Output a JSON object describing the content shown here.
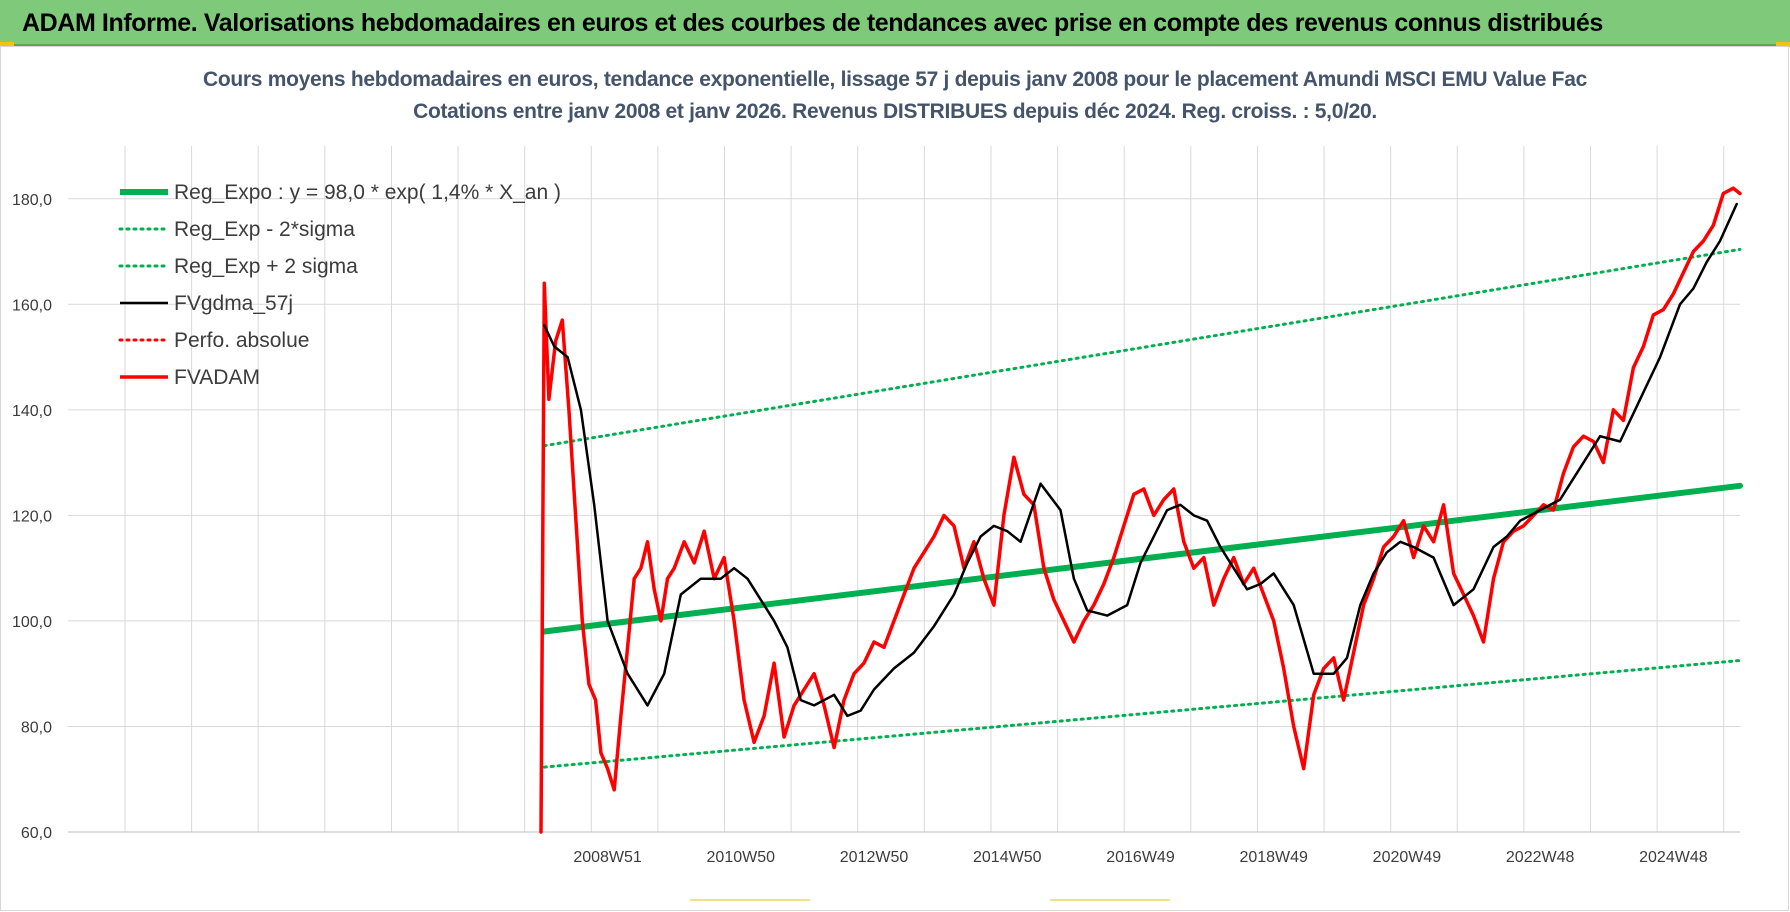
{
  "banner": {
    "title": "ADAM Informe. Valorisations hebdomadaires en euros et des courbes de tendances avec prise en compte des revenus connus distribués"
  },
  "colors": {
    "banner_bg": "#7fc97b",
    "regression": "#00b050",
    "price": "#ff0000",
    "moving_average": "#000000",
    "title_text": "#44546a"
  },
  "chart_data": {
    "type": "line",
    "title": "Cours moyens hebdomadaires en euros, tendance exponentielle, lissage 57 j depuis janv 2008 pour le placement Amundi MSCI EMU Value Fac",
    "subtitle": "Cotations entre janv 2008 et janv 2026. Revenus DISTRIBUES depuis déc 2024. Reg. croiss. : 5,0/20.",
    "xlabel": "",
    "ylabel": "",
    "ylim": [
      60,
      190
    ],
    "y_ticks": [
      "60,0",
      "80,0",
      "100,0",
      "120,0",
      "140,0",
      "160,0",
      "180,0"
    ],
    "x_tick_labels": [
      "2008W51",
      "2010W50",
      "2012W50",
      "2014W50",
      "2016W49",
      "2018W49",
      "2020W49",
      "2022W48",
      "2024W48"
    ],
    "x_range_years": [
      2000.9,
      2026.0
    ],
    "x_tick_years": [
      2009.0,
      2011.0,
      2013.0,
      2015.0,
      2017.0,
      2019.0,
      2021.0,
      2023.0,
      2025.0
    ],
    "grid": true,
    "legend_position": "top-left",
    "series": [
      {
        "name": "Reg_Expo : y = 98,0 * exp( 1,4% *  X_an )",
        "style": "solid-thick",
        "color": "#00b050",
        "x": [
          2008.05,
          2026.0
        ],
        "y": [
          98.0,
          125.6
        ]
      },
      {
        "name": "Reg_Exp - 2*sigma",
        "style": "dotted",
        "color": "#00b050",
        "x": [
          2008.05,
          2026.0
        ],
        "y": [
          72.3,
          92.5
        ]
      },
      {
        "name": "Reg_Exp + 2 sigma",
        "style": "dotted",
        "color": "#00b050",
        "x": [
          2008.05,
          2026.0
        ],
        "y": [
          133.2,
          170.4
        ]
      },
      {
        "name": "FVgdma_57j",
        "style": "solid",
        "color": "#000000",
        "x": [
          2008.05,
          2008.2,
          2008.4,
          2008.6,
          2008.8,
          2009.0,
          2009.3,
          2009.6,
          2009.85,
          2010.1,
          2010.4,
          2010.7,
          2010.9,
          2011.1,
          2011.3,
          2011.5,
          2011.7,
          2011.9,
          2012.1,
          2012.4,
          2012.6,
          2012.8,
          2013.0,
          2013.3,
          2013.6,
          2013.9,
          2014.2,
          2014.4,
          2014.6,
          2014.8,
          2015.0,
          2015.2,
          2015.5,
          2015.8,
          2016.0,
          2016.2,
          2016.5,
          2016.8,
          2017.0,
          2017.2,
          2017.4,
          2017.6,
          2017.8,
          2018.0,
          2018.2,
          2018.4,
          2018.6,
          2018.8,
          2019.0,
          2019.3,
          2019.6,
          2019.9,
          2020.1,
          2020.3,
          2020.5,
          2020.7,
          2020.9,
          2021.1,
          2021.4,
          2021.7,
          2022.0,
          2022.3,
          2022.5,
          2022.7,
          2023.0,
          2023.3,
          2023.6,
          2023.9,
          2024.2,
          2024.5,
          2024.8,
          2025.1,
          2025.3,
          2025.5,
          2025.7,
          2025.95
        ],
        "y": [
          156,
          152,
          150,
          140,
          122,
          100,
          90,
          84,
          90,
          105,
          108,
          108,
          110,
          108,
          104,
          100,
          95,
          85,
          84,
          86,
          82,
          83,
          87,
          91,
          94,
          99,
          105,
          111,
          116,
          118,
          117,
          115,
          126,
          121,
          108,
          102,
          101,
          103,
          111,
          116,
          121,
          122,
          120,
          119,
          114,
          110,
          106,
          107,
          109,
          103,
          90,
          90,
          93,
          103,
          109,
          113,
          115,
          114,
          112,
          103,
          106,
          114,
          116,
          119,
          121,
          123,
          129,
          135,
          134,
          142,
          150,
          160,
          163,
          168,
          172,
          179
        ]
      },
      {
        "name": "Perfo. absolue",
        "style": "dotted",
        "color": "#ff0000",
        "x": [],
        "y": []
      },
      {
        "name": "FVADAM",
        "style": "solid-thick",
        "color": "#ff0000",
        "x": [
          2008.0,
          2008.05,
          2008.12,
          2008.22,
          2008.32,
          2008.42,
          2008.52,
          2008.62,
          2008.72,
          2008.82,
          2008.9,
          2009.0,
          2009.1,
          2009.2,
          2009.3,
          2009.4,
          2009.5,
          2009.6,
          2009.7,
          2009.8,
          2009.9,
          2010.0,
          2010.15,
          2010.3,
          2010.45,
          2010.6,
          2010.75,
          2010.9,
          2011.05,
          2011.2,
          2011.35,
          2011.5,
          2011.65,
          2011.8,
          2011.95,
          2012.1,
          2012.25,
          2012.4,
          2012.55,
          2012.7,
          2012.85,
          2013.0,
          2013.15,
          2013.3,
          2013.45,
          2013.6,
          2013.75,
          2013.9,
          2014.05,
          2014.2,
          2014.35,
          2014.5,
          2014.65,
          2014.8,
          2014.95,
          2015.1,
          2015.25,
          2015.4,
          2015.55,
          2015.7,
          2015.85,
          2016.0,
          2016.15,
          2016.3,
          2016.45,
          2016.6,
          2016.75,
          2016.9,
          2017.05,
          2017.2,
          2017.35,
          2017.5,
          2017.65,
          2017.8,
          2017.95,
          2018.1,
          2018.25,
          2018.4,
          2018.55,
          2018.7,
          2018.85,
          2019.0,
          2019.15,
          2019.3,
          2019.45,
          2019.6,
          2019.75,
          2019.9,
          2020.05,
          2020.2,
          2020.35,
          2020.5,
          2020.65,
          2020.8,
          2020.95,
          2021.1,
          2021.25,
          2021.4,
          2021.55,
          2021.7,
          2021.85,
          2022.0,
          2022.15,
          2022.3,
          2022.45,
          2022.6,
          2022.75,
          2022.9,
          2023.05,
          2023.2,
          2023.35,
          2023.5,
          2023.65,
          2023.8,
          2023.95,
          2024.1,
          2024.25,
          2024.4,
          2024.55,
          2024.7,
          2024.85,
          2025.0,
          2025.15,
          2025.3,
          2025.45,
          2025.6,
          2025.75,
          2025.9,
          2026.0
        ],
        "y": [
          60,
          164,
          142,
          153,
          157,
          140,
          120,
          100,
          88,
          85,
          75,
          72,
          68,
          82,
          95,
          108,
          110,
          115,
          106,
          100,
          108,
          110,
          115,
          111,
          117,
          108,
          112,
          100,
          85,
          77,
          82,
          92,
          78,
          84,
          87,
          90,
          84,
          76,
          85,
          90,
          92,
          96,
          95,
          100,
          105,
          110,
          113,
          116,
          120,
          118,
          110,
          115,
          108,
          103,
          120,
          131,
          124,
          122,
          110,
          104,
          100,
          96,
          100,
          103,
          107,
          112,
          118,
          124,
          125,
          120,
          123,
          125,
          115,
          110,
          112,
          103,
          108,
          112,
          107,
          110,
          105,
          100,
          91,
          80,
          72,
          86,
          91,
          93,
          85,
          94,
          103,
          108,
          114,
          116,
          119,
          112,
          118,
          115,
          122,
          109,
          105,
          101,
          96,
          108,
          115,
          117,
          118,
          120,
          122,
          121,
          128,
          133,
          135,
          134,
          130,
          140,
          138,
          148,
          152,
          158,
          159,
          162,
          166,
          170,
          172,
          175,
          181,
          182,
          181
        ]
      }
    ]
  }
}
